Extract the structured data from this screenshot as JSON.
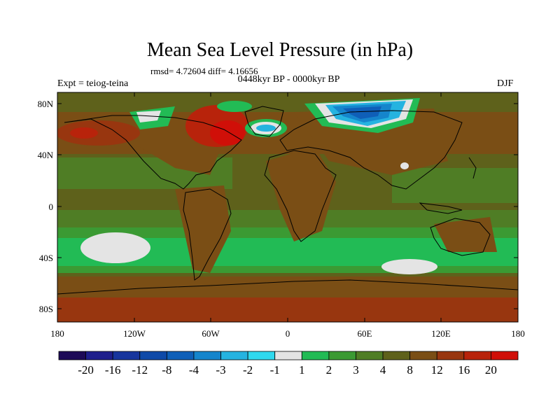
{
  "title": "Mean Sea Level Pressure (in hPa)",
  "stats": "rmsd= 4.72604  diff= 4.16656",
  "period": "0448kyr BP - 0000kyr BP",
  "experiment": "Expt = teiog-teina",
  "season": "DJF",
  "lat_labels": [
    "80N",
    "40N",
    "0",
    "40S",
    "80S"
  ],
  "lon_labels": [
    "180",
    "120W",
    "60W",
    "0",
    "60E",
    "120E",
    "180"
  ],
  "colorbar": {
    "labels": [
      "-20",
      "-16",
      "-12",
      "-8",
      "-4",
      "-3",
      "-2",
      "-1",
      "1",
      "2",
      "3",
      "4",
      "8",
      "12",
      "16",
      "20"
    ],
    "colors": [
      "#1d0a57",
      "#1f1f8c",
      "#17359d",
      "#0f4aa8",
      "#0f5fb8",
      "#1585cc",
      "#25b3e0",
      "#2fd9ee",
      "#e4e4e4",
      "#22bb55",
      "#3b9a33",
      "#4f7d25",
      "#5e611b",
      "#7a4e15",
      "#98360f",
      "#b8230b",
      "#d00f08"
    ]
  }
}
